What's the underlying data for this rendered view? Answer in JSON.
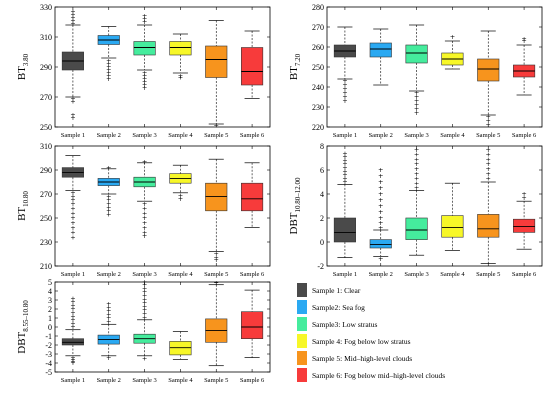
{
  "sample_colors": {
    "Sample 1": "#4a4a4a",
    "Sample 2": "#2aa9f2",
    "Sample 3": "#45ec9d",
    "Sample 4": "#f7f728",
    "Sample 5": "#f7941d",
    "Sample 6": "#f73b3b"
  },
  "legend": {
    "items": [
      {
        "label": "Sample 1: Clear",
        "color": "#4a4a4a"
      },
      {
        "label": "Sample2: Sea fog",
        "color": "#2aa9f2"
      },
      {
        "label": "Sample3: Low stratus",
        "color": "#45ec9d"
      },
      {
        "label": "Sample 4: Fog below low stratus",
        "color": "#f7f728"
      },
      {
        "label": "Sample 5: Mid–high-level clouds",
        "color": "#f7941d"
      },
      {
        "label": "Sample 6: Fog below mid–high-level clouds",
        "color": "#f73b3b"
      }
    ]
  },
  "chart_data": [
    {
      "type": "box",
      "ylabel_main": "BT",
      "ylabel_sub": "3.80",
      "categories": [
        "Sample 1",
        "Sample 2",
        "Sample 3",
        "Sample 4",
        "Sample 5",
        "Sample 6"
      ],
      "ylim": [
        250,
        330
      ],
      "yticks": [
        250,
        270,
        290,
        310,
        330
      ],
      "boxes": [
        {
          "q1": 288,
          "median": 294,
          "q3": 300,
          "wlo": 270,
          "whi": 318,
          "out_lo": [
            269,
            267,
            258,
            256
          ],
          "out_hi": [
            319,
            321,
            323,
            325,
            327
          ]
        },
        {
          "q1": 305,
          "median": 308,
          "q3": 311,
          "wlo": 296,
          "whi": 317,
          "out_lo": [
            294,
            292,
            290,
            288,
            286,
            284,
            282
          ],
          "out_hi": []
        },
        {
          "q1": 298,
          "median": 303,
          "q3": 307,
          "wlo": 288,
          "whi": 318,
          "out_lo": [
            286,
            284,
            282,
            280,
            278,
            276
          ],
          "out_hi": [
            320,
            322,
            324
          ]
        },
        {
          "q1": 298,
          "median": 303,
          "q3": 307,
          "wlo": 286,
          "whi": 312,
          "out_lo": [
            284,
            283
          ],
          "out_hi": []
        },
        {
          "q1": 283,
          "median": 295,
          "q3": 304,
          "wlo": 252,
          "whi": 321,
          "out_lo": [
            251
          ],
          "out_hi": []
        },
        {
          "q1": 278,
          "median": 287,
          "q3": 303,
          "wlo": 269,
          "whi": 314,
          "out_lo": [],
          "out_hi": []
        }
      ]
    },
    {
      "type": "box",
      "ylabel_main": "BT",
      "ylabel_sub": "7.20",
      "categories": [
        "Sample 1",
        "Sample 2",
        "Sample 3",
        "Sample 4",
        "Sample 5",
        "Sample 6"
      ],
      "ylim": [
        220,
        280
      ],
      "yticks": [
        220,
        230,
        240,
        250,
        260,
        270,
        280
      ],
      "boxes": [
        {
          "q1": 255,
          "median": 258,
          "q3": 261,
          "wlo": 244,
          "whi": 270,
          "out_lo": [
            243,
            241,
            239,
            237,
            235,
            233
          ],
          "out_hi": []
        },
        {
          "q1": 255,
          "median": 259,
          "q3": 262,
          "wlo": 241,
          "whi": 269,
          "out_lo": [],
          "out_hi": []
        },
        {
          "q1": 252,
          "median": 257,
          "q3": 261,
          "wlo": 238,
          "whi": 271,
          "out_lo": [
            237,
            235,
            233,
            231,
            229,
            227
          ],
          "out_hi": []
        },
        {
          "q1": 251,
          "median": 254,
          "q3": 257,
          "wlo": 249,
          "whi": 263,
          "out_lo": [],
          "out_hi": [
            265
          ]
        },
        {
          "q1": 243,
          "median": 249,
          "q3": 254,
          "wlo": 226,
          "whi": 268,
          "out_lo": [
            225,
            223,
            221
          ],
          "out_hi": []
        },
        {
          "q1": 245,
          "median": 248,
          "q3": 251,
          "wlo": 236,
          "whi": 261,
          "out_lo": [],
          "out_hi": [
            263,
            264
          ]
        }
      ]
    },
    {
      "type": "box",
      "ylabel_main": "BT",
      "ylabel_sub": "10.80",
      "categories": [
        "Sample 1",
        "Sample 2",
        "Sample 3",
        "Sample 4",
        "Sample 5",
        "Sample 6"
      ],
      "ylim": [
        210,
        310
      ],
      "yticks": [
        210,
        230,
        250,
        270,
        290,
        310
      ],
      "boxes": [
        {
          "q1": 284,
          "median": 288,
          "q3": 292,
          "wlo": 273,
          "whi": 302,
          "out_lo": [
            271,
            268,
            265,
            262,
            258,
            254,
            250,
            246,
            242,
            238,
            234
          ],
          "out_hi": []
        },
        {
          "q1": 277,
          "median": 280,
          "q3": 283,
          "wlo": 270,
          "whi": 291,
          "out_lo": [
            268,
            265,
            262,
            259,
            256,
            253
          ],
          "out_hi": [
            292
          ]
        },
        {
          "q1": 276,
          "median": 280,
          "q3": 284,
          "wlo": 264,
          "whi": 296,
          "out_lo": [
            262,
            258,
            254,
            250,
            246,
            242,
            238,
            235
          ],
          "out_hi": [
            297
          ]
        },
        {
          "q1": 279,
          "median": 283,
          "q3": 287,
          "wlo": 271,
          "whi": 294,
          "out_lo": [
            269,
            266
          ],
          "out_hi": []
        },
        {
          "q1": 256,
          "median": 268,
          "q3": 279,
          "wlo": 222,
          "whi": 299,
          "out_lo": [
            220,
            217,
            215
          ],
          "out_hi": []
        },
        {
          "q1": 256,
          "median": 266,
          "q3": 279,
          "wlo": 242,
          "whi": 296,
          "out_lo": [],
          "out_hi": []
        }
      ]
    },
    {
      "type": "box",
      "ylabel_main": "DBT",
      "ylabel_sub": "10.80–12.00",
      "categories": [
        "Sample 1",
        "Sample 2",
        "Sample 3",
        "Sample 4",
        "Sample 5",
        "Sample 6"
      ],
      "ylim": [
        -2,
        8
      ],
      "yticks": [
        -2,
        0,
        2,
        4,
        6,
        8
      ],
      "boxes": [
        {
          "q1": 0,
          "median": 0.8,
          "q3": 2,
          "wlo": -1.3,
          "whi": 4.8,
          "out_lo": [],
          "out_hi": [
            5.0,
            5.3,
            5.6,
            5.9,
            6.2,
            6.5,
            6.8,
            7.1,
            7.4
          ]
        },
        {
          "q1": -0.5,
          "median": -0.2,
          "q3": 0.2,
          "wlo": -1.2,
          "whi": 1.0,
          "out_lo": [
            -1.4
          ],
          "out_hi": [
            1.2,
            1.6,
            2.0,
            2.5,
            3.0,
            3.5,
            4.0,
            4.5,
            5.0,
            5.5,
            6.0
          ]
        },
        {
          "q1": 0.2,
          "median": 1,
          "q3": 2,
          "wlo": -1.1,
          "whi": 4.3,
          "out_lo": [],
          "out_hi": [
            4.5,
            4.9,
            5.3,
            5.7,
            6.1,
            6.5,
            6.9,
            7.3,
            7.7
          ]
        },
        {
          "q1": 0.4,
          "median": 1.2,
          "q3": 2.2,
          "wlo": -0.7,
          "whi": 4.9,
          "out_lo": [],
          "out_hi": []
        },
        {
          "q1": 0.4,
          "median": 1.1,
          "q3": 2.3,
          "wlo": -1.8,
          "whi": 5.0,
          "out_lo": [],
          "out_hi": [
            5.3,
            5.7,
            6.1,
            6.5,
            6.9,
            7.3,
            7.7
          ]
        },
        {
          "q1": 0.8,
          "median": 1.3,
          "q3": 1.9,
          "wlo": -0.6,
          "whi": 3.4,
          "out_lo": [],
          "out_hi": [
            3.7,
            4.0
          ]
        }
      ]
    },
    {
      "type": "box",
      "ylabel_main": "DBT",
      "ylabel_sub": "8.55–10.80",
      "categories": [
        "Sample 1",
        "Sample 2",
        "Sample 3",
        "Sample 4",
        "Sample 5",
        "Sample 6"
      ],
      "ylim": [
        -5,
        5
      ],
      "yticks": [
        -5,
        -4,
        -3,
        -2,
        -1,
        0,
        1,
        2,
        3,
        4,
        5
      ],
      "boxes": [
        {
          "q1": -2,
          "median": -1.7,
          "q3": -1.3,
          "wlo": -3.2,
          "whi": -0.3,
          "out_lo": [
            -3.4,
            -3.6,
            -3.8,
            -4.0
          ],
          "out_hi": [
            0,
            0.4,
            0.8,
            1.2,
            1.6,
            2.0,
            2.4,
            2.8,
            3.2
          ]
        },
        {
          "q1": -1.9,
          "median": -1.4,
          "q3": -0.9,
          "wlo": -3.2,
          "whi": 0.3,
          "out_lo": [
            -3.4
          ],
          "out_hi": [
            0.6,
            1.0,
            1.4,
            1.8,
            2.2,
            2.6
          ]
        },
        {
          "q1": -1.8,
          "median": -1.3,
          "q3": -0.8,
          "wlo": -3.2,
          "whi": 0.8,
          "out_lo": [
            -3.5
          ],
          "out_hi": [
            1.1,
            1.5,
            1.9,
            2.3,
            2.7,
            3.1,
            3.5,
            3.9,
            4.3,
            4.7,
            5.0
          ]
        },
        {
          "q1": -3.1,
          "median": -2.3,
          "q3": -1.6,
          "wlo": -3.6,
          "whi": -0.5,
          "out_lo": [],
          "out_hi": []
        },
        {
          "q1": -1.7,
          "median": -0.4,
          "q3": 0.9,
          "wlo": -4.3,
          "whi": 4.7,
          "out_lo": [],
          "out_hi": [
            4.9
          ]
        },
        {
          "q1": -1.3,
          "median": 0,
          "q3": 1.7,
          "wlo": -3.4,
          "whi": 4.1,
          "out_lo": [],
          "out_hi": []
        }
      ]
    }
  ]
}
